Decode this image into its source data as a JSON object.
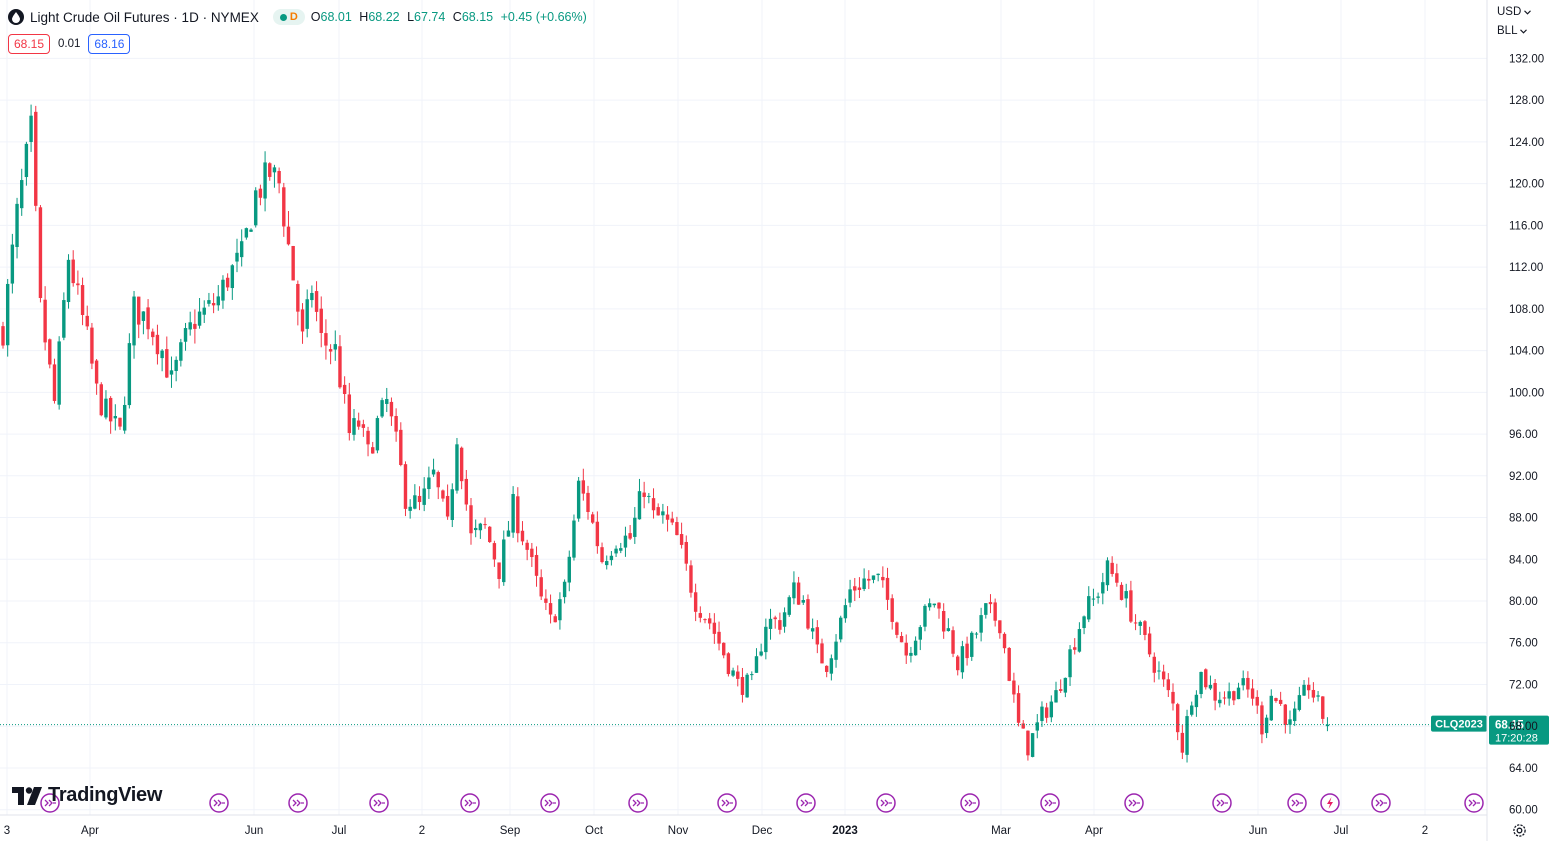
{
  "header": {
    "title": "Light Crude Oil Futures · 1D · NYMEX",
    "market_status": "D",
    "ohlc": [
      {
        "key": "O",
        "value": "68.01"
      },
      {
        "key": "H",
        "value": "68.22"
      },
      {
        "key": "L",
        "value": "67.74"
      },
      {
        "key": "C",
        "value": "68.15"
      }
    ],
    "change": "+0.45 (+0.66%)",
    "sell_price": "68.15",
    "spread": "0.01",
    "buy_price": "68.16"
  },
  "toolbar": {
    "currency": "USD",
    "unit": "BLL"
  },
  "logo": {
    "text": "TradingView"
  },
  "colors": {
    "up": "#089981",
    "down": "#f23645",
    "grid": "#f0f3fa",
    "axis_text": "#131722",
    "event_icon": "#9c27b0",
    "accent": "#2962ff"
  },
  "icons": [
    "tradingview-logo-icon",
    "event-icon",
    "earnings-flash-icon",
    "gear-icon",
    "chevron-down-icon"
  ],
  "chart_data": {
    "type": "candlestick",
    "symbol": "CLQ2023",
    "last_price": "68.15",
    "countdown": "17:20:28",
    "y_axis": {
      "ticks": [
        "132.00",
        "128.00",
        "124.00",
        "120.00",
        "116.00",
        "112.00",
        "108.00",
        "104.00",
        "100.00",
        "96.00",
        "92.00",
        "88.00",
        "84.00",
        "80.00",
        "76.00",
        "72.00",
        "68.00",
        "64.00",
        "60.00"
      ],
      "range": [
        57.0,
        137.6
      ]
    },
    "x_axis": {
      "labels": [
        "3",
        "Apr",
        "Jun",
        "Jul",
        "2",
        "Sep",
        "Oct",
        "Nov",
        "Dec",
        "2023",
        "Mar",
        "Apr",
        "Jun",
        "Jul",
        "2"
      ],
      "bold_labels": [
        "2023"
      ]
    },
    "waypoints": [
      [
        0,
        106
      ],
      [
        3,
        117
      ],
      [
        6,
        125
      ],
      [
        8,
        108
      ],
      [
        11,
        99
      ],
      [
        14,
        113
      ],
      [
        16,
        109
      ],
      [
        18,
        105
      ],
      [
        20,
        100
      ],
      [
        22,
        98
      ],
      [
        25,
        96
      ],
      [
        28,
        108
      ],
      [
        31,
        107
      ],
      [
        34,
        104
      ],
      [
        36,
        101
      ],
      [
        39,
        105
      ],
      [
        41,
        107
      ],
      [
        44,
        108
      ],
      [
        46,
        109
      ],
      [
        48,
        111
      ],
      [
        51,
        113
      ],
      [
        54,
        119
      ],
      [
        57,
        121
      ],
      [
        59,
        120
      ],
      [
        62,
        111
      ],
      [
        64,
        105
      ],
      [
        66,
        110
      ],
      [
        68,
        105
      ],
      [
        71,
        104
      ],
      [
        74,
        96
      ],
      [
        76,
        97
      ],
      [
        78,
        94
      ],
      [
        80,
        97
      ],
      [
        82,
        99
      ],
      [
        84,
        95
      ],
      [
        86,
        90
      ],
      [
        89,
        89
      ],
      [
        92,
        92
      ],
      [
        95,
        87
      ],
      [
        97,
        96
      ],
      [
        100,
        86
      ],
      [
        103,
        87
      ],
      [
        106,
        83
      ],
      [
        109,
        89
      ],
      [
        112,
        85
      ],
      [
        115,
        80
      ],
      [
        117,
        78
      ],
      [
        120,
        81
      ],
      [
        123,
        91
      ],
      [
        125,
        89
      ],
      [
        128,
        84
      ],
      [
        131,
        86
      ],
      [
        134,
        86
      ],
      [
        137,
        91
      ],
      [
        139,
        88
      ],
      [
        141,
        88
      ],
      [
        144,
        86
      ],
      [
        146,
        83
      ],
      [
        148,
        80
      ],
      [
        151,
        78
      ],
      [
        154,
        75
      ],
      [
        157,
        72
      ],
      [
        160,
        72
      ],
      [
        163,
        78
      ],
      [
        166,
        78
      ],
      [
        169,
        81
      ],
      [
        171,
        80
      ],
      [
        174,
        75
      ],
      [
        176,
        74
      ],
      [
        179,
        78
      ],
      [
        181,
        81
      ],
      [
        184,
        82
      ],
      [
        187,
        82
      ],
      [
        190,
        79
      ],
      [
        193,
        75
      ],
      [
        196,
        78
      ],
      [
        199,
        80
      ],
      [
        202,
        77
      ],
      [
        204,
        74
      ],
      [
        207,
        76
      ],
      [
        210,
        79
      ],
      [
        213,
        78
      ],
      [
        215,
        73
      ],
      [
        217,
        68
      ],
      [
        219,
        66
      ],
      [
        222,
        69
      ],
      [
        225,
        71
      ],
      [
        228,
        75
      ],
      [
        231,
        79
      ],
      [
        233,
        80
      ],
      [
        236,
        83
      ],
      [
        238,
        82
      ],
      [
        241,
        79
      ],
      [
        243,
        77
      ],
      [
        246,
        74
      ],
      [
        248,
        72
      ],
      [
        250,
        70
      ],
      [
        252,
        66
      ],
      [
        254,
        71
      ],
      [
        256,
        73
      ],
      [
        259,
        71
      ],
      [
        262,
        71
      ],
      [
        264,
        72
      ],
      [
        267,
        71
      ],
      [
        269,
        68
      ],
      [
        271,
        71
      ],
      [
        273,
        70
      ],
      [
        275,
        68
      ],
      [
        277,
        70
      ],
      [
        279,
        72
      ],
      [
        281,
        70
      ],
      [
        283,
        68
      ]
    ],
    "event_markers": 17
  }
}
